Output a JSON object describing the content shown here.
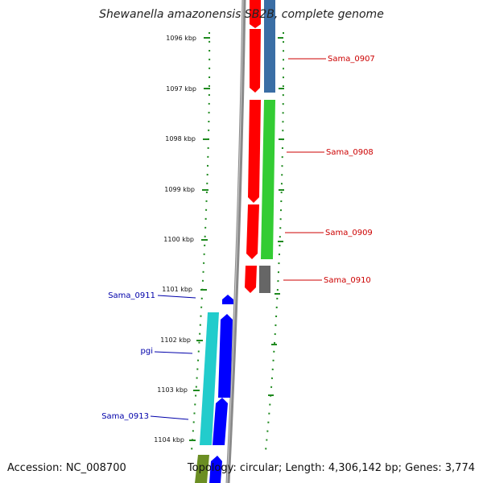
{
  "title": "Shewanella amazonensis SB2B, complete genome",
  "accession": "Accession: NC_008700",
  "summary": "Topology: circular; Length: 4,306,142 bp; Genes: 3,774",
  "ticks": [
    "1096 kbp",
    "1097 kbp",
    "1098 kbp",
    "1099 kbp",
    "1100 kbp",
    "1101 kbp",
    "1102 kbp",
    "1103 kbp",
    "1104 kbp"
  ],
  "genes": [
    {
      "name": "Sama_0907",
      "strand": "forward",
      "color": "#cc0000"
    },
    {
      "name": "Sama_0908",
      "strand": "forward",
      "color": "#cc0000"
    },
    {
      "name": "Sama_0909",
      "strand": "forward",
      "color": "#cc0000"
    },
    {
      "name": "Sama_0910",
      "strand": "forward",
      "color": "#cc0000"
    },
    {
      "name": "Sama_0911",
      "strand": "reverse",
      "color": "#0000aa"
    },
    {
      "name": "pgi",
      "strand": "reverse",
      "color": "#0000aa"
    },
    {
      "name": "Sama_0913",
      "strand": "reverse",
      "color": "#0000aa"
    }
  ],
  "colors": {
    "forward_cds": "#ff0000",
    "reverse_cds": "#0000ff",
    "backbone": "#8a8a8a",
    "ticks": "#1f8a1f",
    "track_blue": "#3a6ea5",
    "track_green": "#33cc33",
    "track_gray": "#666666",
    "track_cyan": "#22cccc",
    "track_olive": "#6b8e23"
  }
}
